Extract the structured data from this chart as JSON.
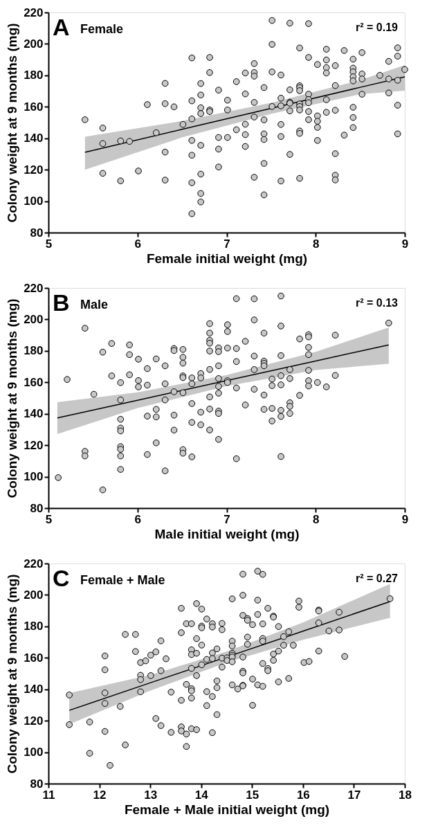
{
  "chart_data": [
    {
      "type": "scatter",
      "title": "A",
      "subtitle": "Female",
      "xlabel": "Female initial weight (mg)",
      "ylabel": "Colony weight at 9 months (mg)",
      "annotations": [
        "r² = 0.19"
      ],
      "xlim": [
        5,
        9
      ],
      "ylim": [
        80,
        220
      ],
      "xticks": [
        5,
        6,
        7,
        8,
        9
      ],
      "yticks": [
        80,
        100,
        120,
        140,
        160,
        180,
        200,
        220
      ],
      "grid": false,
      "marker": "circle",
      "series": [
        {
          "color": "#c8c8c8",
          "x": [
            5.41,
            5.61,
            5.61,
            5.61,
            5.81,
            5.81,
            5.91,
            6.01,
            6.11,
            6.21,
            6.31,
            6.31,
            6.31,
            6.31,
            6.41,
            6.51,
            6.61,
            6.61,
            6.61,
            6.61,
            6.61,
            6.61,
            6.61,
            6.71,
            6.71,
            6.71,
            6.71,
            6.71,
            6.71,
            6.71,
            6.71,
            6.81,
            6.81,
            6.81,
            6.81,
            6.91,
            6.91,
            6.91,
            6.91,
            7.01,
            7.01,
            7.01,
            7.11,
            7.11,
            7.21,
            7.21,
            7.21,
            7.21,
            7.21,
            7.31,
            7.31,
            7.31,
            7.31,
            7.31,
            7.31,
            7.42,
            7.42,
            7.42,
            7.42,
            7.42,
            7.42,
            7.51,
            7.51,
            7.51,
            7.51,
            7.61,
            7.61,
            7.61,
            7.61,
            7.61,
            7.61,
            7.71,
            7.71,
            7.71,
            7.71,
            7.71,
            7.71,
            7.82,
            7.82,
            7.82,
            7.82,
            7.82,
            7.82,
            7.82,
            7.82,
            7.82,
            7.82,
            7.92,
            7.92,
            7.92,
            7.92,
            7.92,
            7.92,
            7.92,
            8.02,
            8.02,
            8.02,
            8.02,
            8.02,
            8.12,
            8.12,
            8.12,
            8.12,
            8.12,
            8.12,
            8.22,
            8.22,
            8.22,
            8.22,
            8.22,
            8.22,
            8.32,
            8.32,
            8.42,
            8.42,
            8.42,
            8.42,
            8.42,
            8.42,
            8.42,
            8.42,
            8.52,
            8.52,
            8.52,
            8.52,
            8.72,
            8.82,
            8.82,
            8.82,
            8.92,
            8.92,
            8.92,
            8.92,
            8.92,
            9.0
          ],
          "values": [
            151.8,
            146.5,
            136.6,
            117.7,
            138.3,
            112.9,
            138,
            119.2,
            161.4,
            143.5,
            174.9,
            162,
            131.2,
            113.4,
            160,
            148.8,
            191.1,
            163.8,
            152.3,
            138.6,
            129.2,
            111.7,
            92,
            174.8,
            167.5,
            159.4,
            155.7,
            135.5,
            117.2,
            104.9,
            99.5,
            191.4,
            181.8,
            158,
            157,
            170.6,
            140.5,
            133.1,
            121.7,
            164.2,
            158,
            140.5,
            176,
            145.4,
            181.5,
            168.2,
            148.9,
            142.3,
            134.8,
            187.5,
            181.8,
            179.5,
            162.8,
            153.5,
            115.2,
            172.2,
            151.7,
            142.8,
            139.2,
            124,
            104,
            214.9,
            199.7,
            182.2,
            160.2,
            180.2,
            165.5,
            160.6,
            148.8,
            141.1,
            112.8,
            213.2,
            170.8,
            162.9,
            162.3,
            157.4,
            129.7,
            197.4,
            173.4,
            172.2,
            170.3,
            161.8,
            160.2,
            158,
            144.6,
            143.1,
            114.5,
            212.9,
            191.4,
            168,
            164.6,
            162.6,
            157,
            151.8,
            186.9,
            154.2,
            150.8,
            146.9,
            138.6,
            196.6,
            189.8,
            184.9,
            181.5,
            164.5,
            156.5,
            186.2,
            173.5,
            157.8,
            130.2,
            116.5,
            113.5,
            195.8,
            142,
            190.3,
            184.6,
            182.2,
            179.1,
            176.5,
            159.7,
            153.2,
            146.8,
            194.5,
            180.9,
            177.7,
            168,
            180,
            188.9,
            177.7,
            168.8,
            197.5,
            192.2,
            176.9,
            161,
            142.8,
            183.7
          ]
        },
        {
          "type": "line",
          "marker": "none",
          "line_style": "solid",
          "color": "#000000",
          "x": [
            5.41,
            6.5,
            7.5,
            8.5,
            9
          ],
          "values": [
            131.1,
            145.7,
            159.0,
            172.4,
            179.1
          ],
          "lower": [
            120,
            140.5,
            155.5,
            168,
            170.3
          ],
          "upper": [
            141,
            151,
            162.5,
            177,
            186.5
          ]
        }
      ]
    },
    {
      "type": "scatter",
      "title": "B",
      "subtitle": "Male",
      "xlabel": "Male initial weight (mg)",
      "ylabel": "Colony weight at 9 months (mg)",
      "annotations": [
        "r² = 0.13"
      ],
      "xlim": [
        5,
        9
      ],
      "ylim": [
        80,
        220
      ],
      "xticks": [
        5,
        6,
        7,
        8,
        9
      ],
      "yticks": [
        80,
        100,
        120,
        140,
        160,
        180,
        200,
        220
      ],
      "grid": false,
      "marker": "circle",
      "series": [
        {
          "color": "#c8c8c8",
          "x": [
            5.11,
            5.21,
            5.41,
            5.41,
            5.41,
            5.51,
            5.61,
            5.61,
            5.71,
            5.71,
            5.81,
            5.81,
            5.81,
            5.81,
            5.81,
            5.81,
            5.81,
            5.81,
            5.81,
            5.91,
            5.91,
            5.91,
            6.01,
            6.01,
            6.01,
            6.11,
            6.11,
            6.11,
            6.11,
            6.21,
            6.21,
            6.21,
            6.21,
            6.31,
            6.31,
            6.31,
            6.31,
            6.41,
            6.41,
            6.41,
            6.41,
            6.41,
            6.51,
            6.51,
            6.51,
            6.51,
            6.51,
            6.51,
            6.51,
            6.51,
            6.61,
            6.61,
            6.61,
            6.61,
            6.61,
            6.71,
            6.71,
            6.71,
            6.71,
            6.81,
            6.81,
            6.81,
            6.81,
            6.81,
            6.81,
            6.81,
            6.81,
            6.81,
            6.91,
            6.91,
            6.91,
            6.91,
            6.91,
            6.91,
            6.91,
            6.91,
            6.91,
            7.01,
            7.01,
            7.01,
            7.01,
            7.01,
            7.11,
            7.11,
            7.11,
            7.11,
            7.11,
            7.21,
            7.21,
            7.31,
            7.31,
            7.31,
            7.31,
            7.31,
            7.42,
            7.42,
            7.42,
            7.42,
            7.42,
            7.42,
            7.51,
            7.51,
            7.51,
            7.51,
            7.61,
            7.61,
            7.61,
            7.61,
            7.61,
            7.61,
            7.61,
            7.61,
            7.71,
            7.71,
            7.71,
            7.71,
            7.71,
            7.82,
            7.82,
            7.92,
            7.92,
            7.92,
            7.92,
            7.92,
            7.92,
            7.92,
            8.02,
            8.12,
            8.22,
            8.22,
            8.82
          ],
          "values": [
            99.4,
            161.8,
            194.4,
            116.1,
            113.2,
            152.4,
            179.2,
            91.6,
            184.7,
            164.1,
            159.8,
            148.8,
            136.5,
            130.9,
            129.1,
            119.1,
            117.4,
            113.2,
            104.6,
            183.8,
            177.6,
            164.8,
            174.7,
            161.1,
            157.1,
            168.7,
            158.2,
            138.5,
            114.1,
            174.9,
            142.8,
            138,
            121.5,
            170.5,
            159.1,
            148.8,
            103.7,
            181.5,
            180.2,
            154,
            139.1,
            129.6,
            180.9,
            175.9,
            172.2,
            164.1,
            163,
            153.4,
            117.2,
            114.9,
            162.8,
            159.1,
            146.5,
            134.5,
            112.6,
            165.6,
            162.8,
            141,
            133,
            197.3,
            191.3,
            186.7,
            184.9,
            179.9,
            168.2,
            150.7,
            143,
            129.7,
            181.9,
            179.5,
            170.5,
            162.4,
            157.4,
            153.1,
            141.7,
            140.2,
            123.7,
            196.6,
            192.3,
            181.8,
            161,
            159.9,
            213.2,
            181.5,
            173.2,
            156.4,
            111.4,
            186.1,
            145.6,
            213.1,
            199.7,
            176.7,
            168.1,
            155.6,
            191.3,
            173.5,
            172.1,
            170.5,
            151.9,
            142.8,
            162.1,
            157.9,
            143.4,
            135.4,
            214.9,
            195.8,
            177,
            164.2,
            158.4,
            142.2,
            138.3,
            112.8,
            168.1,
            162.4,
            147,
            144.7,
            140.2,
            187.6,
            151.7,
            190.3,
            188.9,
            182.2,
            177.6,
            167.6,
            161,
            157.7,
            159.9,
            157.1,
            190,
            164.4,
            197.7
          ]
        },
        {
          "type": "line",
          "marker": "none",
          "line_style": "solid",
          "color": "#000000",
          "x": [
            5.1,
            6,
            7,
            8,
            8.82
          ],
          "values": [
            137.3,
            148.6,
            161.1,
            173.6,
            183.8
          ],
          "lower": [
            127.1,
            143.6,
            157.6,
            167.8,
            171.8
          ],
          "upper": [
            147.4,
            153.6,
            164.6,
            179.4,
            194.9
          ]
        }
      ]
    },
    {
      "type": "scatter",
      "title": "C",
      "subtitle": "Female + Male",
      "xlabel": "Female + Male initial weight (mg)",
      "ylabel": "Colony weight at 9 months (mg)",
      "annotations": [
        "r² = 0.27"
      ],
      "xlim": [
        11,
        18
      ],
      "ylim": [
        80,
        220
      ],
      "xticks": [
        11,
        12,
        13,
        14,
        15,
        16,
        17,
        18
      ],
      "yticks": [
        80,
        100,
        120,
        140,
        160,
        180,
        200,
        220
      ],
      "grid": false,
      "marker": "circle",
      "series": [
        {
          "color": "#c8c8c8",
          "x": [
            11.41,
            11.41,
            11.81,
            11.81,
            12.11,
            12.11,
            12.11,
            12.11,
            12.11,
            12.21,
            12.41,
            12.51,
            12.51,
            12.71,
            12.71,
            12.81,
            12.81,
            12.81,
            12.81,
            12.91,
            13.01,
            13.01,
            13.11,
            13.11,
            13.21,
            13.21,
            13.21,
            13.31,
            13.41,
            13.41,
            13.61,
            13.61,
            13.61,
            13.61,
            13.61,
            13.71,
            13.71,
            13.71,
            13.71,
            13.81,
            13.81,
            13.81,
            13.81,
            13.81,
            13.81,
            13.81,
            13.81,
            13.91,
            13.91,
            13.91,
            13.91,
            13.91,
            14.01,
            14.01,
            14.01,
            14.01,
            14.01,
            14.11,
            14.11,
            14.11,
            14.11,
            14.22,
            14.22,
            14.22,
            14.22,
            14.22,
            14.22,
            14.31,
            14.31,
            14.31,
            14.31,
            14.41,
            14.41,
            14.41,
            14.41,
            14.51,
            14.51,
            14.61,
            14.61,
            14.61,
            14.61,
            14.61,
            14.61,
            14.61,
            14.61,
            14.72,
            14.82,
            14.82,
            14.82,
            14.82,
            14.82,
            14.82,
            14.82,
            14.82,
            14.91,
            14.91,
            14.91,
            14.91,
            15.01,
            15.01,
            15.01,
            15.11,
            15.11,
            15.11,
            15.11,
            15.21,
            15.21,
            15.21,
            15.21,
            15.21,
            15.21,
            15.31,
            15.31,
            15.31,
            15.42,
            15.42,
            15.42,
            15.42,
            15.52,
            15.52,
            15.52,
            15.62,
            15.62,
            15.72,
            15.72,
            15.81,
            15.92,
            15.92,
            16.02,
            16.12,
            16.31,
            16.31,
            16.31,
            16.31,
            16.51,
            16.71,
            16.71,
            16.82,
            17.71
          ],
          "values": [
            136.4,
            117.5,
            119.2,
            99.3,
            161.2,
            152.4,
            137.7,
            131,
            113.2,
            91.6,
            129.1,
            174.9,
            104.6,
            174.9,
            164,
            157,
            148.9,
            146.2,
            138.4,
            158.1,
            161.7,
            148.7,
            163.8,
            121.4,
            170.8,
            151.8,
            116.9,
            159.4,
            138.2,
            112.6,
            191.5,
            176,
            133,
            116.1,
            113.5,
            181.7,
            143.1,
            111.5,
            103.6,
            181.7,
            165.1,
            162.1,
            153.3,
            140.4,
            139,
            134.4,
            114.9,
            194.5,
            172.2,
            162.9,
            148.7,
            114.3,
            191,
            180.2,
            179.1,
            168.1,
            155.6,
            184.7,
            159,
            138.5,
            129.6,
            181.7,
            179.6,
            163.1,
            159.5,
            135.4,
            112.4,
            165.7,
            145.3,
            141,
            123.9,
            181.9,
            177.9,
            159.8,
            154.1,
            160,
            158.3,
            197.5,
            170.6,
            167.5,
            162.9,
            161.7,
            160.5,
            157.5,
            142.8,
            140.2,
            213.2,
            199.8,
            187,
            160.5,
            151.5,
            150.4,
            142.5,
            142.2,
            185,
            183.9,
            173.2,
            168.6,
            181.1,
            146.5,
            129.8,
            215.1,
            196.7,
            187.6,
            142.8,
            213.1,
            181.6,
            172.3,
            170.6,
            156.4,
            141.9,
            191.5,
            153.2,
            151.8,
            186.5,
            185.9,
            162.4,
            158.4,
            179.9,
            164.3,
            144.7,
            173.5,
            168,
            176.6,
            146.9,
            168,
            196.1,
            192.2,
            157,
            157.7,
            190.4,
            189.8,
            182.2,
            164.3,
            177.1,
            189,
            177.7,
            160.9,
            197.6
          ]
        },
        {
          "type": "line",
          "marker": "none",
          "line_style": "solid",
          "color": "#000000",
          "x": [
            11.41,
            13,
            14.5,
            16,
            17.71
          ],
          "values": [
            126.6,
            144.1,
            160.5,
            177.0,
            195.8
          ],
          "lower": [
            117.8,
            139.1,
            157,
            171.5,
            185.4
          ],
          "upper": [
            137.6,
            149.1,
            164,
            182.5,
            207
          ]
        }
      ]
    }
  ]
}
